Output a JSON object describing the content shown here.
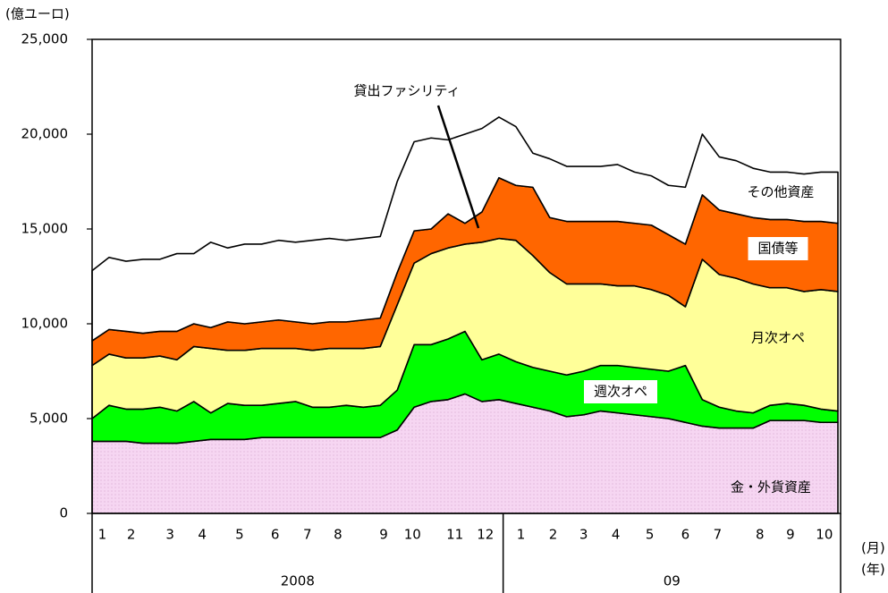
{
  "chart_data": {
    "type": "stacked_area",
    "y_unit": "(億ユーロ)",
    "x_month_unit": "(月)",
    "x_year_unit": "(年)",
    "annotation": "貸出ファシリティ",
    "xlim": [
      0,
      44
    ],
    "x": [
      0,
      1,
      2,
      3,
      4,
      5,
      6,
      7,
      8,
      9,
      10,
      11,
      12,
      13,
      14,
      15,
      16,
      17,
      18,
      19,
      20,
      21,
      22,
      23,
      24,
      25,
      26,
      27,
      28,
      29,
      30,
      31,
      32,
      33,
      34,
      35,
      36,
      37,
      38,
      39,
      40,
      41,
      42,
      43,
      44
    ],
    "xticks": [
      {
        "value": 0.6,
        "label": "1"
      },
      {
        "value": 2.3,
        "label": "2"
      },
      {
        "value": 4.6,
        "label": "3"
      },
      {
        "value": 6.5,
        "label": "4"
      },
      {
        "value": 8.7,
        "label": "5"
      },
      {
        "value": 10.8,
        "label": "6"
      },
      {
        "value": 12.7,
        "label": "7"
      },
      {
        "value": 14.5,
        "label": "8"
      },
      {
        "value": 17.2,
        "label": "9"
      },
      {
        "value": 18.9,
        "label": "10"
      },
      {
        "value": 21.4,
        "label": "11"
      },
      {
        "value": 23.2,
        "label": "12"
      },
      {
        "value": 25.3,
        "label": "1"
      },
      {
        "value": 27.2,
        "label": "2"
      },
      {
        "value": 29.0,
        "label": "3"
      },
      {
        "value": 30.9,
        "label": "4"
      },
      {
        "value": 32.9,
        "label": "5"
      },
      {
        "value": 35.0,
        "label": "6"
      },
      {
        "value": 36.9,
        "label": "7"
      },
      {
        "value": 39.4,
        "label": "8"
      },
      {
        "value": 41.2,
        "label": "9"
      },
      {
        "value": 43.2,
        "label": "10"
      }
    ],
    "years": [
      "2008",
      "09"
    ],
    "ylim": [
      0,
      25000
    ],
    "yticks": [
      0,
      {
        "value": 5000,
        "label": "5,000"
      },
      {
        "value": 10000,
        "label": "10,000"
      },
      {
        "value": 15000,
        "label": "15,000"
      },
      {
        "value": 20000,
        "label": "20,000"
      },
      {
        "value": 25000,
        "label": "25,000"
      }
    ],
    "series": [
      {
        "name": "金・外貨資産",
        "color": "#f6d6f2",
        "values": [
          3800,
          3800,
          3800,
          3700,
          3700,
          3700,
          3800,
          3900,
          3900,
          3900,
          4000,
          4000,
          4000,
          4000,
          4000,
          4000,
          4000,
          4000,
          4400,
          5600,
          5900,
          6000,
          6300,
          5900,
          6000,
          5800,
          5600,
          5400,
          5100,
          5200,
          5400,
          5300,
          5200,
          5100,
          5000,
          4800,
          4600,
          4500,
          4500,
          4500,
          4900,
          4900,
          4900,
          4800,
          4800
        ]
      },
      {
        "name": "週次オペ",
        "color": "#00ff00",
        "values": [
          1200,
          1900,
          1700,
          1800,
          1900,
          1700,
          2100,
          1400,
          1900,
          1800,
          1700,
          1800,
          1900,
          1600,
          1600,
          1700,
          1600,
          1700,
          2100,
          3300,
          3000,
          3200,
          3300,
          2200,
          2400,
          2200,
          2100,
          2100,
          2200,
          2300,
          2400,
          2500,
          2500,
          2500,
          2500,
          3000,
          1400,
          1100,
          900,
          800,
          800,
          900,
          800,
          700,
          600
        ]
      },
      {
        "name": "月次オペ",
        "color": "#ffff99",
        "values": [
          2800,
          2700,
          2700,
          2700,
          2700,
          2700,
          2900,
          3400,
          2800,
          2900,
          3000,
          2900,
          2800,
          3000,
          3100,
          3000,
          3100,
          3100,
          4500,
          4300,
          4800,
          4800,
          4600,
          6200,
          6100,
          6400,
          5900,
          5200,
          4800,
          4600,
          4300,
          4200,
          4300,
          4200,
          4000,
          3100,
          7400,
          7000,
          7000,
          6800,
          6200,
          6100,
          6000,
          6300,
          6300
        ]
      },
      {
        "name": "国債等",
        "color": "#ff6600",
        "values": [
          1300,
          1300,
          1400,
          1300,
          1300,
          1500,
          1200,
          1100,
          1500,
          1400,
          1400,
          1500,
          1400,
          1400,
          1400,
          1400,
          1500,
          1500,
          1700,
          1700,
          1300,
          1800,
          1100,
          1600,
          3200,
          2900,
          3600,
          2900,
          3300,
          3300,
          3300,
          3400,
          3300,
          3400,
          3200,
          3300,
          3400,
          3400,
          3400,
          3500,
          3600,
          3600,
          3700,
          3600,
          3600
        ]
      },
      {
        "name": "その他資産",
        "color": "#ffffff",
        "values": [
          3700,
          3800,
          3700,
          3900,
          3800,
          4100,
          3700,
          4500,
          3900,
          4200,
          4100,
          4200,
          4200,
          4400,
          4400,
          4300,
          4300,
          4300,
          4800,
          4700,
          4800,
          3900,
          4700,
          4400,
          3200,
          3100,
          1800,
          3100,
          2900,
          2900,
          2900,
          3000,
          2700,
          2600,
          2600,
          3000,
          3200,
          2800,
          2800,
          2600,
          2500,
          2500,
          2500,
          2600,
          2700
        ]
      }
    ]
  }
}
